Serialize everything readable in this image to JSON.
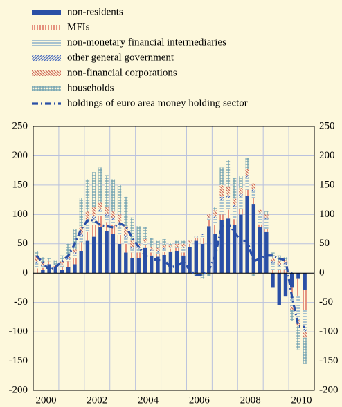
{
  "chart_data": {
    "type": "bar",
    "stacked": true,
    "categories": [
      "2000",
      null,
      null,
      null,
      null,
      null,
      null,
      null,
      "2002",
      null,
      null,
      null,
      null,
      null,
      null,
      null,
      "2004",
      null,
      null,
      null,
      null,
      null,
      null,
      null,
      "2006",
      null,
      null,
      null,
      null,
      null,
      null,
      null,
      "2008",
      null,
      null,
      null,
      null,
      null,
      null,
      null,
      "2010",
      null,
      null
    ],
    "series": [
      {
        "name": "non-residents",
        "color": "#2a4fa6",
        "pattern": "solid",
        "values": [
          0,
          5,
          15,
          10,
          5,
          10,
          15,
          38,
          55,
          62,
          78,
          72,
          67,
          50,
          35,
          25,
          25,
          43,
          30,
          28,
          31,
          37,
          38,
          30,
          45,
          55,
          50,
          80,
          67,
          90,
          93,
          82,
          100,
          132,
          118,
          78,
          70,
          -25,
          -55,
          -40,
          -25,
          -10,
          -28
        ]
      },
      {
        "name": "MFIs",
        "color": "#d8584a",
        "pattern": "vstripe",
        "values": [
          8,
          4,
          5,
          2,
          5,
          10,
          10,
          15,
          15,
          20,
          20,
          15,
          15,
          15,
          15,
          10,
          10,
          5,
          5,
          5,
          5,
          5,
          5,
          5,
          5,
          5,
          10,
          10,
          15,
          10,
          15,
          10,
          10,
          10,
          10,
          5,
          5,
          5,
          5,
          5,
          -15,
          -30,
          -35
        ]
      },
      {
        "name": "non-monetary financial intermediaries",
        "color": "#7aa6c8",
        "pattern": "hline",
        "values": [
          10,
          3,
          0,
          0,
          3,
          3,
          7,
          10,
          15,
          10,
          7,
          10,
          8,
          15,
          10,
          7,
          7,
          3,
          3,
          3,
          5,
          1,
          1,
          8,
          1,
          1,
          5,
          3,
          12,
          25,
          20,
          20,
          20,
          20,
          12,
          17,
          17,
          12,
          7,
          9,
          -17,
          -40,
          -32
        ]
      },
      {
        "name": "other general government",
        "color": "#4a6cc0",
        "pattern": "diag",
        "values": [
          2,
          2,
          0,
          0,
          2,
          2,
          3,
          5,
          5,
          5,
          5,
          5,
          5,
          5,
          5,
          3,
          3,
          2,
          2,
          2,
          2,
          1,
          1,
          2,
          1,
          1,
          2,
          2,
          3,
          5,
          5,
          5,
          5,
          5,
          3,
          3,
          3,
          3,
          3,
          3,
          2,
          0,
          -5
        ]
      },
      {
        "name": "non-financial corporations",
        "color": "#d06a5a",
        "pattern": "diag2",
        "values": [
          8,
          5,
          0,
          2,
          5,
          5,
          5,
          10,
          15,
          15,
          10,
          10,
          10,
          15,
          15,
          10,
          5,
          5,
          5,
          5,
          5,
          3,
          5,
          5,
          3,
          0,
          0,
          5,
          10,
          20,
          15,
          10,
          10,
          10,
          10,
          5,
          5,
          5,
          5,
          5,
          -5,
          -10,
          -10
        ]
      },
      {
        "name": "households",
        "color": "#6fa0b0",
        "pattern": "grid",
        "values": [
          10,
          8,
          5,
          8,
          10,
          20,
          35,
          50,
          55,
          60,
          60,
          55,
          55,
          50,
          50,
          40,
          30,
          20,
          15,
          12,
          10,
          5,
          5,
          5,
          0,
          -5,
          -10,
          -5,
          5,
          30,
          45,
          35,
          20,
          20,
          -5,
          0,
          5,
          10,
          10,
          5,
          -20,
          -40,
          -45
        ]
      },
      {
        "name": "holdings of euro area money holding sector",
        "color": "#2a4fa6",
        "type": "line",
        "values": [
          30,
          18,
          5,
          10,
          20,
          30,
          50,
          75,
          90,
          90,
          82,
          80,
          78,
          85,
          80,
          60,
          45,
          30,
          25,
          22,
          22,
          10,
          12,
          20,
          5,
          -3,
          -3,
          5,
          30,
          80,
          85,
          70,
          55,
          55,
          20,
          25,
          30,
          30,
          25,
          22,
          -40,
          -90,
          -92
        ]
      }
    ],
    "ylim": [
      -200,
      250
    ],
    "yticks": [
      -200,
      -150,
      -100,
      -50,
      0,
      50,
      100,
      150,
      200,
      250
    ],
    "grid": true,
    "legend": "top-left"
  }
}
